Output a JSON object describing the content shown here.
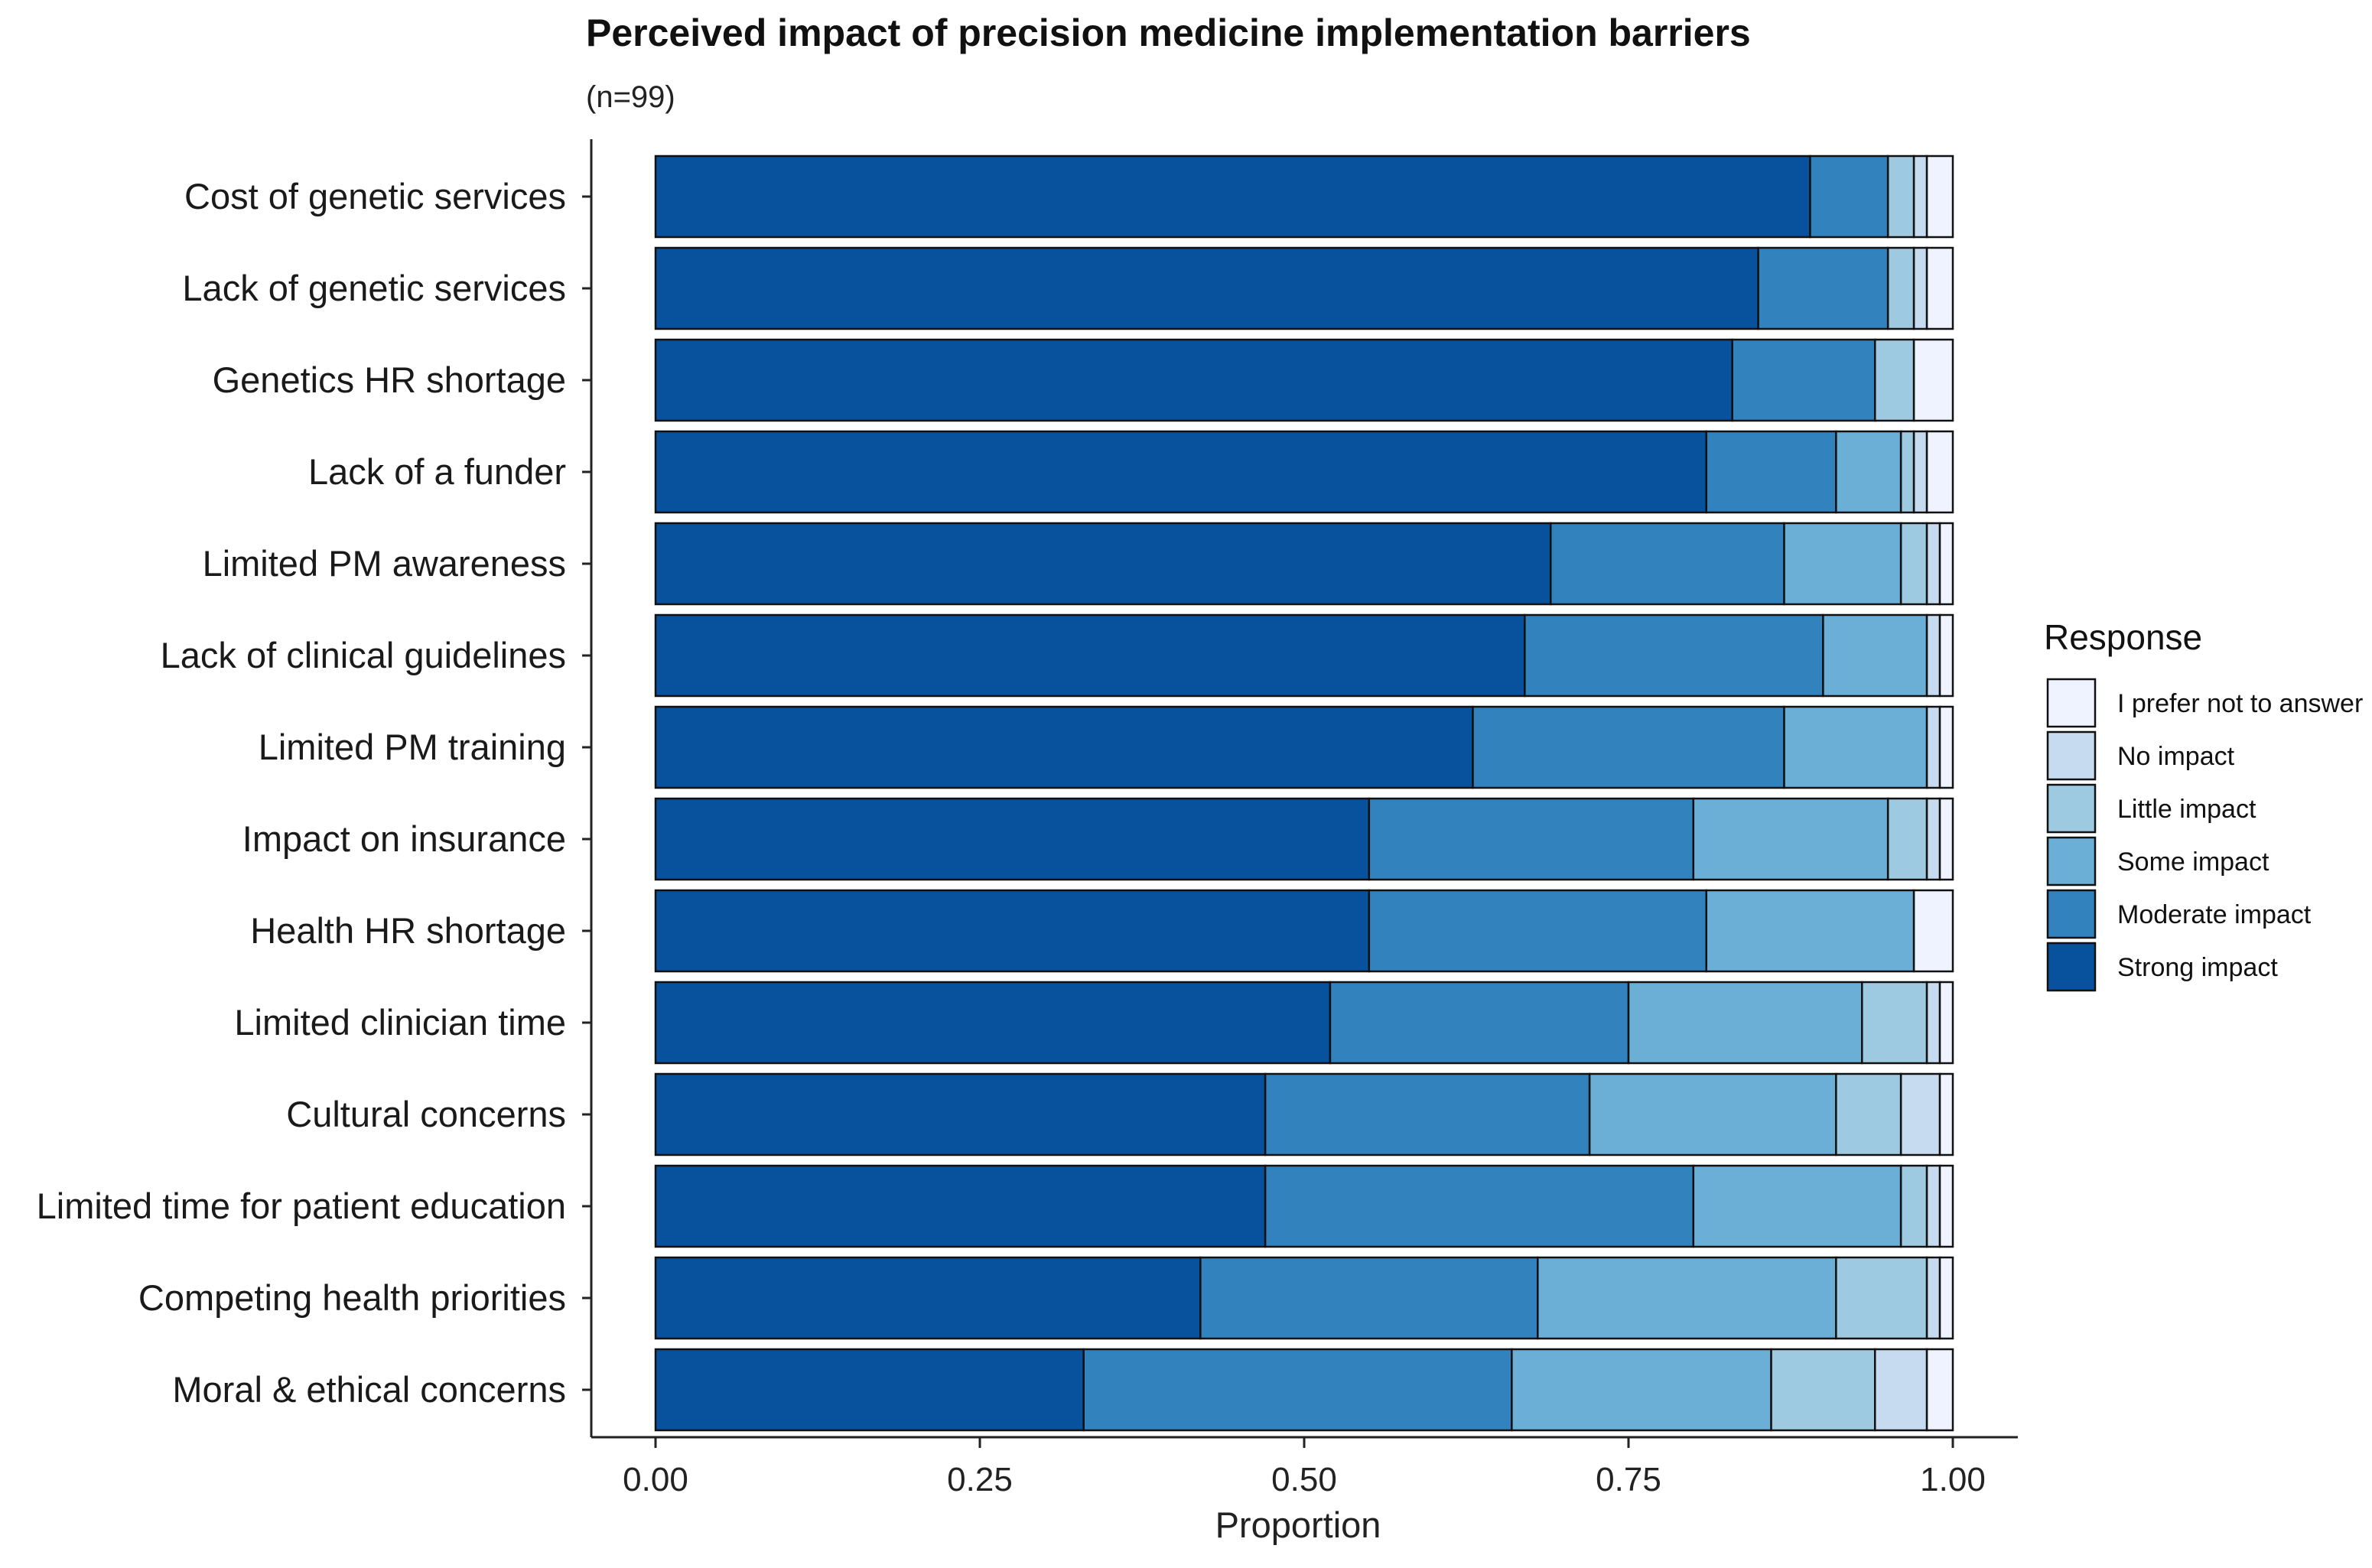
{
  "chart_data": {
    "type": "bar",
    "orientation": "horizontal",
    "stacked": true,
    "title": "Perceived impact of precision medicine implementation barriers",
    "subtitle": "(n=99)",
    "xlabel": "Proportion",
    "ylabel": "",
    "xlim": [
      0,
      1
    ],
    "xticks": [
      "0.00",
      "0.25",
      "0.50",
      "0.75",
      "1.00"
    ],
    "grid": false,
    "legend": {
      "title": "Response",
      "position": "right"
    },
    "categories": [
      "Cost of genetic services",
      "Lack of genetic services",
      "Genetics HR shortage",
      "Lack of a funder",
      "Limited PM awareness",
      "Lack of clinical guidelines",
      "Limited PM training",
      "Impact on insurance",
      "Health HR shortage",
      "Limited clinician time",
      "Cultural concerns",
      "Limited time for patient education",
      "Competing health priorities",
      "Moral & ethical concerns"
    ],
    "series": [
      {
        "name": "Strong impact",
        "color": "#08519c",
        "values": [
          0.89,
          0.85,
          0.83,
          0.81,
          0.69,
          0.67,
          0.63,
          0.55,
          0.55,
          0.52,
          0.47,
          0.47,
          0.42,
          0.33
        ]
      },
      {
        "name": "Moderate impact",
        "color": "#3182bd",
        "values": [
          0.06,
          0.1,
          0.11,
          0.1,
          0.18,
          0.23,
          0.24,
          0.25,
          0.26,
          0.23,
          0.25,
          0.33,
          0.26,
          0.33
        ]
      },
      {
        "name": "Some impact",
        "color": "#6baed6",
        "values": [
          0.0,
          0.0,
          0.0,
          0.05,
          0.09,
          0.08,
          0.11,
          0.15,
          0.16,
          0.18,
          0.19,
          0.16,
          0.23,
          0.2
        ]
      },
      {
        "name": "Little impact",
        "color": "#9ecae1",
        "values": [
          0.02,
          0.02,
          0.03,
          0.01,
          0.02,
          0.0,
          0.0,
          0.03,
          0.0,
          0.05,
          0.05,
          0.02,
          0.07,
          0.08
        ]
      },
      {
        "name": "No impact",
        "color": "#c6dbef",
        "values": [
          0.01,
          0.01,
          0.0,
          0.01,
          0.01,
          0.01,
          0.01,
          0.01,
          0.0,
          0.01,
          0.03,
          0.01,
          0.01,
          0.04
        ]
      },
      {
        "name": "I prefer not to answer",
        "color": "#eff3ff",
        "values": [
          0.02,
          0.02,
          0.03,
          0.02,
          0.01,
          0.01,
          0.01,
          0.01,
          0.03,
          0.01,
          0.01,
          0.01,
          0.01,
          0.02
        ]
      }
    ],
    "legend_order": [
      "I prefer not to answer",
      "No impact",
      "Little impact",
      "Some impact",
      "Moderate impact",
      "Strong impact"
    ]
  }
}
